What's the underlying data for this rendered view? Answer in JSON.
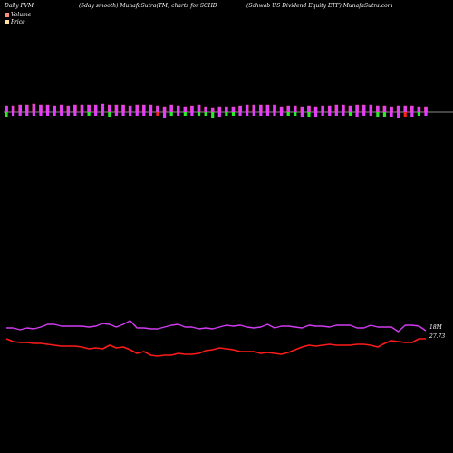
{
  "header": {
    "left": "Daily PVM",
    "mid": "(5day smooth) MunafaSutra(TM) charts for SCHD",
    "right": "(Schwab US Dividend Equity ETF) MunafaSutra.com"
  },
  "legend": [
    {
      "label": "Volume",
      "color": "#ff8a80"
    },
    {
      "label": "Price",
      "color": "#ffe0a0"
    }
  ],
  "colors": {
    "up": "#e040fb",
    "down": "#2ee82e",
    "price_line": "#ff1a1a",
    "volume_line": "#d23cf2",
    "bar_edge": "#ff4fa0"
  },
  "chart_data": {
    "type": "bar+line",
    "end_labels": {
      "volume": "18M",
      "price": "27.73"
    },
    "bars": [
      {
        "up": 7,
        "down": 5
      },
      {
        "up": 7,
        "down": 4
      },
      {
        "up": 8,
        "down": 4
      },
      {
        "up": 8,
        "down": 4
      },
      {
        "up": 9,
        "down": 4
      },
      {
        "up": 8,
        "down": 4
      },
      {
        "up": 8,
        "down": 4
      },
      {
        "up": 7,
        "down": 4
      },
      {
        "up": 8,
        "down": 4
      },
      {
        "up": 7,
        "down": 4
      },
      {
        "up": 8,
        "down": 4
      },
      {
        "up": 8,
        "down": 4
      },
      {
        "up": 8,
        "down": 4
      },
      {
        "up": 8,
        "down": 4
      },
      {
        "up": 9,
        "down": 4
      },
      {
        "up": 8,
        "down": 5
      },
      {
        "up": 8,
        "down": 4
      },
      {
        "up": 8,
        "down": 4
      },
      {
        "up": 7,
        "down": 4
      },
      {
        "up": 8,
        "down": 4
      },
      {
        "up": 8,
        "down": 4
      },
      {
        "up": 8,
        "down": 4
      },
      {
        "up": 7,
        "down": 4
      },
      {
        "up": 6,
        "down": 6
      },
      {
        "up": 8,
        "down": 4
      },
      {
        "up": 7,
        "down": 4
      },
      {
        "up": 6,
        "down": 4
      },
      {
        "up": 7,
        "down": 4
      },
      {
        "up": 8,
        "down": 4
      },
      {
        "up": 6,
        "down": 4
      },
      {
        "up": 5,
        "down": 6
      },
      {
        "up": 6,
        "down": 5
      },
      {
        "up": 6,
        "down": 4
      },
      {
        "up": 6,
        "down": 4
      },
      {
        "up": 7,
        "down": 4
      },
      {
        "up": 8,
        "down": 4
      },
      {
        "up": 8,
        "down": 4
      },
      {
        "up": 8,
        "down": 4
      },
      {
        "up": 8,
        "down": 4
      },
      {
        "up": 8,
        "down": 4
      },
      {
        "up": 6,
        "down": 4
      },
      {
        "up": 7,
        "down": 4
      },
      {
        "up": 7,
        "down": 4
      },
      {
        "up": 6,
        "down": 5
      },
      {
        "up": 7,
        "down": 5
      },
      {
        "up": 6,
        "down": 5
      },
      {
        "up": 7,
        "down": 4
      },
      {
        "up": 7,
        "down": 4
      },
      {
        "up": 8,
        "down": 4
      },
      {
        "up": 8,
        "down": 4
      },
      {
        "up": 7,
        "down": 4
      },
      {
        "up": 8,
        "down": 5
      },
      {
        "up": 8,
        "down": 4
      },
      {
        "up": 8,
        "down": 4
      },
      {
        "up": 7,
        "down": 5
      },
      {
        "up": 7,
        "down": 5
      },
      {
        "up": 6,
        "down": 5
      },
      {
        "up": 7,
        "down": 6
      },
      {
        "up": 7,
        "down": 5
      },
      {
        "up": 7,
        "down": 5
      },
      {
        "up": 6,
        "down": 4
      },
      {
        "up": 6,
        "down": 4
      }
    ],
    "bar_colors": [
      "d",
      "u",
      "u",
      "u",
      "u",
      "u",
      "u",
      "u",
      "u",
      "u",
      "u",
      "u",
      "d",
      "u",
      "u",
      "d",
      "u",
      "u",
      "u",
      "u",
      "u",
      "u",
      "r",
      "u",
      "d",
      "u",
      "d",
      "u",
      "d",
      "d",
      "d",
      "u",
      "d",
      "d",
      "u",
      "u",
      "u",
      "u",
      "u",
      "u",
      "u",
      "d",
      "d",
      "u",
      "d",
      "u",
      "u",
      "u",
      "u",
      "u",
      "d",
      "u",
      "u",
      "u",
      "d",
      "d",
      "u",
      "u",
      "r",
      "u",
      "d",
      "u"
    ],
    "volume_line": [
      362,
      362,
      364,
      362,
      363,
      361,
      358,
      358,
      360,
      360,
      360,
      360,
      361,
      360,
      357,
      358,
      361,
      358,
      354,
      362,
      362,
      363,
      363,
      361,
      359,
      358,
      361,
      361,
      363,
      362,
      363,
      361,
      359,
      360,
      359,
      361,
      362,
      361,
      358,
      362,
      360,
      360,
      361,
      362,
      359,
      360,
      360,
      361,
      359,
      359,
      359,
      362,
      362,
      359,
      361,
      361,
      361,
      366,
      359,
      359,
      360,
      365
    ],
    "price_line": [
      374,
      377,
      378,
      378,
      379,
      379,
      380,
      381,
      382,
      382,
      382,
      383,
      385,
      384,
      385,
      381,
      384,
      383,
      386,
      390,
      388,
      392,
      393,
      392,
      392,
      390,
      391,
      391,
      390,
      387,
      386,
      384,
      385,
      386,
      388,
      388,
      388,
      390,
      389,
      390,
      391,
      389,
      386,
      383,
      381,
      382,
      381,
      380,
      381,
      381,
      381,
      380,
      380,
      381,
      383,
      379,
      376,
      377,
      378,
      378,
      374,
      374
    ]
  }
}
